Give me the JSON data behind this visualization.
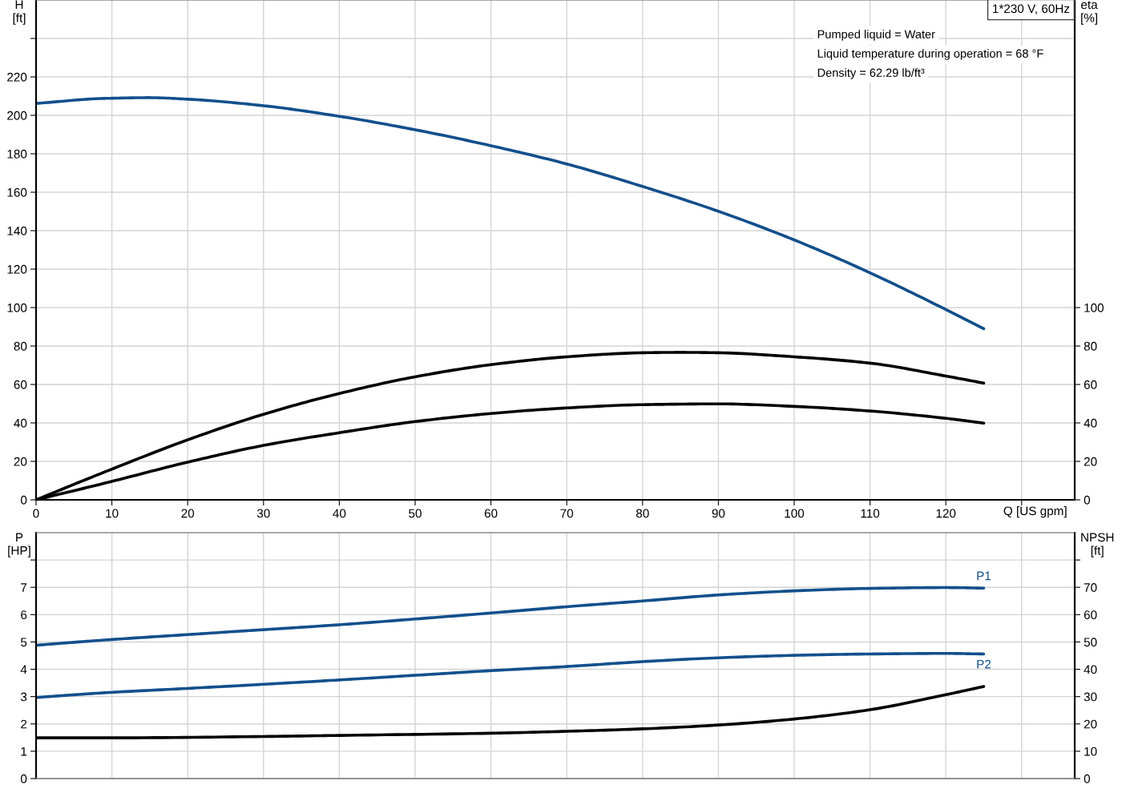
{
  "chart_data": [
    {
      "type": "line",
      "title": "1*230 V, 60Hz",
      "xlabel": "Q [US gpm]",
      "ylabel": "H\n[ft]",
      "y2label": "eta\n[%]",
      "annotations": [
        "Pumped liquid = Water",
        "Liquid temperature during operation = 68 °F",
        "Density = 62.29 lb/ft³"
      ],
      "xlim": [
        0,
        137
      ],
      "xticks": [
        0,
        10,
        20,
        30,
        40,
        50,
        60,
        70,
        80,
        90,
        100,
        110,
        120,
        {
          "value": 130,
          "label": null
        }
      ],
      "ylim": [
        0,
        260
      ],
      "yticks": [
        0,
        20,
        40,
        60,
        80,
        100,
        120,
        140,
        160,
        180,
        200,
        220,
        {
          "value": 240,
          "label": null
        }
      ],
      "y2lim": [
        0,
        260
      ],
      "y2ticks": [
        0,
        20,
        40,
        60,
        80,
        100
      ],
      "grid": true,
      "legend": false,
      "series": [
        {
          "color": "#124f8c",
          "x": [
            0,
            9,
            15,
            20,
            30,
            40,
            50,
            60,
            70,
            80,
            90,
            100,
            110,
            120,
            125
          ],
          "values": [
            206.2,
            208.8,
            209.2,
            208.4,
            205.0,
            199.5,
            192.5,
            184.2,
            174.7,
            163.0,
            150.1,
            135.2,
            118.1,
            99.0,
            89.0
          ]
        },
        {
          "color": "#000000",
          "axis": "y2",
          "x": [
            0,
            9,
            20,
            30,
            40,
            50,
            60,
            70,
            80,
            85,
            90,
            100,
            110,
            120,
            125
          ],
          "values": [
            0,
            14.4,
            31.2,
            44.5,
            55.3,
            64.0,
            70.3,
            74.4,
            76.5,
            76.7,
            76.5,
            74.4,
            71.1,
            64.4,
            60.7
          ]
        },
        {
          "color": "#000000",
          "axis": "y2",
          "x": [
            0,
            9,
            20,
            30,
            40,
            50,
            60,
            70,
            80,
            90,
            100,
            110,
            120,
            125
          ],
          "values": [
            0,
            8.6,
            19.6,
            28.3,
            34.9,
            40.7,
            44.9,
            47.8,
            49.5,
            49.9,
            48.6,
            46.2,
            42.4,
            39.9
          ]
        }
      ]
    },
    {
      "type": "line",
      "ylabel": "P\n[HP]",
      "y2label": "NPSH\n[ft]",
      "xlim": [
        0,
        137
      ],
      "xticks": [
        0,
        10,
        20,
        30,
        40,
        50,
        60,
        70,
        80,
        90,
        100,
        110,
        120,
        130
      ],
      "ylim": [
        0,
        9
      ],
      "yticks": [
        0,
        1,
        2,
        3,
        4,
        5,
        6,
        7,
        {
          "value": 8,
          "label": null
        }
      ],
      "y2lim": [
        0,
        90
      ],
      "y2ticks": [
        0,
        10,
        20,
        30,
        40,
        50,
        60,
        70,
        {
          "value": 80,
          "label": null
        }
      ],
      "tick_labels": "y",
      "grid": true,
      "legend": false,
      "series": [
        {
          "name": "P1",
          "color": "#124f8c",
          "x": [
            0,
            9,
            20,
            30,
            40,
            50,
            60,
            70,
            80,
            90,
            100,
            110,
            120,
            125
          ],
          "values": [
            4.88,
            5.07,
            5.27,
            5.45,
            5.63,
            5.84,
            6.06,
            6.29,
            6.5,
            6.72,
            6.87,
            6.96,
            6.99,
            6.97
          ]
        },
        {
          "name": "P2",
          "color": "#124f8c",
          "x": [
            0,
            9,
            20,
            30,
            40,
            50,
            60,
            70,
            80,
            90,
            100,
            110,
            120,
            125
          ],
          "values": [
            2.97,
            3.14,
            3.3,
            3.45,
            3.61,
            3.78,
            3.95,
            4.1,
            4.28,
            4.42,
            4.51,
            4.56,
            4.58,
            4.56
          ]
        },
        {
          "color": "#000000",
          "axis": "y2",
          "x": [
            0,
            9,
            30,
            40,
            60,
            70,
            80,
            90,
            100,
            110,
            120,
            125
          ],
          "values": [
            14.9,
            14.9,
            15.4,
            15.8,
            16.6,
            17.3,
            18.2,
            19.6,
            21.8,
            25.2,
            30.7,
            33.7
          ]
        }
      ]
    }
  ]
}
